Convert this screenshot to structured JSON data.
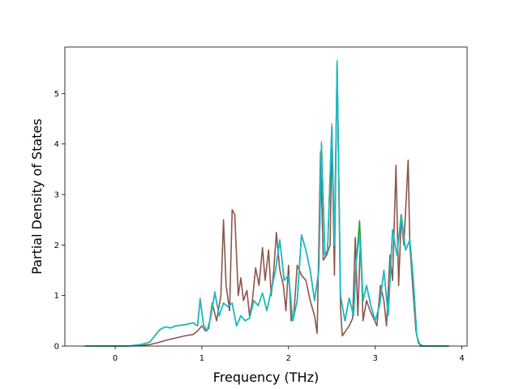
{
  "chart_data": {
    "type": "line",
    "title": "",
    "xlabel": "Frequency (THz)",
    "ylabel": "Partial Density of States",
    "xlim": [
      -0.58,
      4.06
    ],
    "ylim": [
      0,
      5.92
    ],
    "xticks": [
      0,
      1,
      2,
      3,
      4
    ],
    "yticks": [
      0,
      1,
      2,
      3,
      4,
      5
    ],
    "grid": false,
    "legend": "none",
    "series": [
      {
        "color": "#8c564b",
        "points": [
          [
            -0.35,
            0
          ],
          [
            0.15,
            0
          ],
          [
            0.3,
            0.01
          ],
          [
            0.4,
            0.03
          ],
          [
            0.5,
            0.07
          ],
          [
            0.6,
            0.12
          ],
          [
            0.7,
            0.16
          ],
          [
            0.8,
            0.2
          ],
          [
            0.9,
            0.23
          ],
          [
            0.95,
            0.3
          ],
          [
            1.0,
            0.4
          ],
          [
            1.04,
            0.3
          ],
          [
            1.08,
            0.35
          ],
          [
            1.12,
            0.85
          ],
          [
            1.17,
            0.5
          ],
          [
            1.22,
            1.0
          ],
          [
            1.25,
            2.5
          ],
          [
            1.28,
            1.2
          ],
          [
            1.32,
            0.7
          ],
          [
            1.35,
            2.7
          ],
          [
            1.38,
            2.6
          ],
          [
            1.42,
            1.0
          ],
          [
            1.45,
            1.35
          ],
          [
            1.48,
            0.9
          ],
          [
            1.52,
            1.1
          ],
          [
            1.55,
            0.6
          ],
          [
            1.58,
            0.85
          ],
          [
            1.62,
            1.55
          ],
          [
            1.66,
            1.2
          ],
          [
            1.7,
            1.95
          ],
          [
            1.73,
            1.3
          ],
          [
            1.77,
            1.9
          ],
          [
            1.8,
            1.0
          ],
          [
            1.83,
            1.5
          ],
          [
            1.86,
            2.25
          ],
          [
            1.9,
            1.5
          ],
          [
            1.94,
            1.2
          ],
          [
            1.97,
            0.7
          ],
          [
            2.0,
            1.6
          ],
          [
            2.03,
            0.5
          ],
          [
            2.06,
            0.6
          ],
          [
            2.1,
            1.6
          ],
          [
            2.15,
            1.4
          ],
          [
            2.2,
            1.3
          ],
          [
            2.25,
            0.9
          ],
          [
            2.3,
            0.6
          ],
          [
            2.33,
            0.25
          ],
          [
            2.37,
            3.85
          ],
          [
            2.4,
            1.7
          ],
          [
            2.44,
            1.8
          ],
          [
            2.48,
            2.0
          ],
          [
            2.5,
            4.2
          ],
          [
            2.53,
            1.4
          ],
          [
            2.56,
            5.6
          ],
          [
            2.6,
            0.75
          ],
          [
            2.62,
            0.2
          ],
          [
            2.66,
            0.3
          ],
          [
            2.7,
            0.4
          ],
          [
            2.74,
            0.55
          ],
          [
            2.77,
            2.15
          ],
          [
            2.8,
            0.6
          ],
          [
            2.83,
            2.1
          ],
          [
            2.86,
            0.5
          ],
          [
            2.9,
            0.9
          ],
          [
            2.94,
            0.7
          ],
          [
            2.98,
            0.55
          ],
          [
            3.02,
            0.4
          ],
          [
            3.06,
            1.2
          ],
          [
            3.1,
            0.9
          ],
          [
            3.13,
            0.4
          ],
          [
            3.17,
            1.8
          ],
          [
            3.2,
            1.3
          ],
          [
            3.24,
            3.58
          ],
          [
            3.27,
            1.2
          ],
          [
            3.3,
            2.55
          ],
          [
            3.33,
            2.0
          ],
          [
            3.36,
            3.0
          ],
          [
            3.38,
            3.68
          ],
          [
            3.4,
            2.0
          ],
          [
            3.42,
            1.5
          ],
          [
            3.44,
            1.0
          ],
          [
            3.47,
            0.3
          ],
          [
            3.5,
            0.05
          ],
          [
            3.55,
            0
          ],
          [
            3.85,
            0
          ]
        ]
      },
      {
        "color": "#e377c2",
        "points": [
          [
            -0.35,
            0
          ],
          [
            0.15,
            0
          ],
          [
            0.3,
            0.03
          ],
          [
            0.4,
            0.08
          ],
          [
            0.48,
            0.25
          ],
          [
            0.52,
            0.33
          ],
          [
            0.58,
            0.38
          ],
          [
            0.64,
            0.36
          ],
          [
            0.7,
            0.4
          ],
          [
            0.8,
            0.42
          ],
          [
            0.9,
            0.46
          ],
          [
            0.95,
            0.4
          ],
          [
            0.98,
            0.95
          ],
          [
            1.02,
            0.42
          ],
          [
            1.06,
            0.3
          ],
          [
            1.1,
            0.55
          ],
          [
            1.15,
            1.08
          ],
          [
            1.2,
            0.6
          ],
          [
            1.25,
            0.85
          ],
          [
            1.3,
            0.78
          ],
          [
            1.35,
            0.85
          ],
          [
            1.4,
            0.4
          ],
          [
            1.45,
            0.6
          ],
          [
            1.5,
            0.5
          ],
          [
            1.55,
            0.55
          ],
          [
            1.6,
            0.9
          ],
          [
            1.65,
            0.8
          ],
          [
            1.7,
            1.05
          ],
          [
            1.75,
            0.7
          ],
          [
            1.8,
            1.1
          ],
          [
            1.85,
            1.5
          ],
          [
            1.9,
            2.1
          ],
          [
            1.95,
            1.3
          ],
          [
            2.0,
            1.4
          ],
          [
            2.05,
            0.5
          ],
          [
            2.1,
            0.9
          ],
          [
            2.15,
            2.2
          ],
          [
            2.2,
            1.9
          ],
          [
            2.25,
            1.5
          ],
          [
            2.3,
            0.9
          ],
          [
            2.35,
            1.5
          ],
          [
            2.38,
            4.05
          ],
          [
            2.42,
            1.8
          ],
          [
            2.45,
            1.9
          ],
          [
            2.5,
            4.4
          ],
          [
            2.53,
            2.0
          ],
          [
            2.56,
            5.6
          ],
          [
            2.6,
            1.0
          ],
          [
            2.65,
            0.5
          ],
          [
            2.7,
            0.95
          ],
          [
            2.75,
            0.6
          ],
          [
            2.78,
            1.65
          ],
          [
            2.82,
            2.35
          ],
          [
            2.86,
            0.9
          ],
          [
            2.9,
            1.2
          ],
          [
            2.95,
            0.8
          ],
          [
            3.0,
            0.5
          ],
          [
            3.05,
            0.8
          ],
          [
            3.1,
            1.5
          ],
          [
            3.15,
            0.6
          ],
          [
            3.2,
            2.3
          ],
          [
            3.25,
            1.8
          ],
          [
            3.3,
            2.6
          ],
          [
            3.35,
            1.9
          ],
          [
            3.4,
            2.1
          ],
          [
            3.44,
            1.3
          ],
          [
            3.48,
            0.2
          ],
          [
            3.52,
            0
          ],
          [
            3.85,
            0
          ]
        ]
      },
      {
        "color": "#2ca02c",
        "points": [
          [
            -0.35,
            0
          ],
          [
            0.15,
            0
          ],
          [
            0.3,
            0.03
          ],
          [
            0.4,
            0.08
          ],
          [
            0.48,
            0.25
          ],
          [
            0.52,
            0.33
          ],
          [
            0.58,
            0.38
          ],
          [
            0.64,
            0.36
          ],
          [
            0.7,
            0.4
          ],
          [
            0.8,
            0.42
          ],
          [
            0.9,
            0.46
          ],
          [
            0.95,
            0.4
          ],
          [
            0.98,
            0.92
          ],
          [
            1.02,
            0.42
          ],
          [
            1.06,
            0.3
          ],
          [
            1.1,
            0.55
          ],
          [
            1.15,
            1.05
          ],
          [
            1.2,
            0.6
          ],
          [
            1.25,
            0.85
          ],
          [
            1.3,
            0.78
          ],
          [
            1.35,
            0.85
          ],
          [
            1.4,
            0.4
          ],
          [
            1.45,
            0.6
          ],
          [
            1.5,
            0.5
          ],
          [
            1.55,
            0.55
          ],
          [
            1.6,
            0.9
          ],
          [
            1.65,
            0.8
          ],
          [
            1.7,
            1.05
          ],
          [
            1.75,
            0.7
          ],
          [
            1.8,
            1.1
          ],
          [
            1.85,
            1.5
          ],
          [
            1.9,
            2.1
          ],
          [
            1.95,
            1.3
          ],
          [
            2.0,
            1.4
          ],
          [
            2.05,
            0.5
          ],
          [
            2.1,
            0.9
          ],
          [
            2.15,
            2.2
          ],
          [
            2.2,
            1.9
          ],
          [
            2.25,
            1.5
          ],
          [
            2.3,
            0.9
          ],
          [
            2.35,
            1.5
          ],
          [
            2.38,
            4.0
          ],
          [
            2.42,
            1.8
          ],
          [
            2.45,
            1.9
          ],
          [
            2.5,
            4.35
          ],
          [
            2.53,
            2.0
          ],
          [
            2.56,
            5.6
          ],
          [
            2.6,
            1.0
          ],
          [
            2.65,
            0.5
          ],
          [
            2.7,
            0.95
          ],
          [
            2.75,
            0.6
          ],
          [
            2.78,
            1.65
          ],
          [
            2.82,
            2.48
          ],
          [
            2.86,
            0.9
          ],
          [
            2.9,
            1.2
          ],
          [
            2.95,
            0.8
          ],
          [
            3.0,
            0.5
          ],
          [
            3.05,
            0.8
          ],
          [
            3.1,
            1.5
          ],
          [
            3.15,
            0.6
          ],
          [
            3.2,
            2.3
          ],
          [
            3.25,
            1.8
          ],
          [
            3.3,
            2.6
          ],
          [
            3.35,
            1.9
          ],
          [
            3.4,
            2.1
          ],
          [
            3.44,
            1.3
          ],
          [
            3.48,
            0.2
          ],
          [
            3.52,
            0
          ],
          [
            3.85,
            0
          ]
        ]
      },
      {
        "color": "#17becf",
        "points": [
          [
            -0.35,
            0
          ],
          [
            0.15,
            0
          ],
          [
            0.3,
            0.03
          ],
          [
            0.4,
            0.08
          ],
          [
            0.48,
            0.25
          ],
          [
            0.52,
            0.33
          ],
          [
            0.58,
            0.38
          ],
          [
            0.64,
            0.36
          ],
          [
            0.7,
            0.4
          ],
          [
            0.8,
            0.42
          ],
          [
            0.9,
            0.46
          ],
          [
            0.95,
            0.4
          ],
          [
            0.98,
            0.92
          ],
          [
            1.02,
            0.42
          ],
          [
            1.06,
            0.3
          ],
          [
            1.1,
            0.55
          ],
          [
            1.15,
            1.05
          ],
          [
            1.2,
            0.6
          ],
          [
            1.25,
            0.85
          ],
          [
            1.3,
            0.78
          ],
          [
            1.35,
            0.85
          ],
          [
            1.4,
            0.4
          ],
          [
            1.45,
            0.6
          ],
          [
            1.5,
            0.5
          ],
          [
            1.55,
            0.55
          ],
          [
            1.6,
            0.9
          ],
          [
            1.65,
            0.8
          ],
          [
            1.7,
            1.05
          ],
          [
            1.75,
            0.7
          ],
          [
            1.8,
            1.1
          ],
          [
            1.85,
            1.5
          ],
          [
            1.9,
            2.1
          ],
          [
            1.95,
            1.3
          ],
          [
            2.0,
            1.4
          ],
          [
            2.05,
            0.5
          ],
          [
            2.1,
            0.9
          ],
          [
            2.15,
            2.2
          ],
          [
            2.2,
            1.9
          ],
          [
            2.25,
            1.5
          ],
          [
            2.3,
            0.9
          ],
          [
            2.35,
            1.5
          ],
          [
            2.38,
            4.0
          ],
          [
            2.42,
            1.8
          ],
          [
            2.45,
            1.9
          ],
          [
            2.5,
            4.35
          ],
          [
            2.53,
            2.0
          ],
          [
            2.56,
            5.65
          ],
          [
            2.6,
            1.0
          ],
          [
            2.65,
            0.5
          ],
          [
            2.7,
            0.95
          ],
          [
            2.75,
            0.6
          ],
          [
            2.78,
            1.65
          ],
          [
            2.82,
            2.2
          ],
          [
            2.86,
            0.9
          ],
          [
            2.9,
            1.2
          ],
          [
            2.95,
            0.8
          ],
          [
            3.0,
            0.5
          ],
          [
            3.05,
            0.8
          ],
          [
            3.1,
            1.5
          ],
          [
            3.15,
            0.6
          ],
          [
            3.2,
            2.3
          ],
          [
            3.25,
            1.8
          ],
          [
            3.3,
            2.55
          ],
          [
            3.35,
            1.9
          ],
          [
            3.4,
            2.1
          ],
          [
            3.44,
            1.3
          ],
          [
            3.48,
            0.2
          ],
          [
            3.52,
            0
          ],
          [
            3.85,
            0
          ]
        ]
      }
    ]
  }
}
